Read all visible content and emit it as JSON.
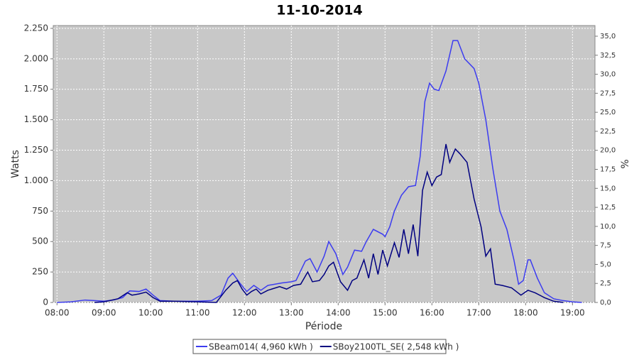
{
  "chart_data": {
    "type": "line",
    "title": "11-10-2014",
    "x_label": "Période",
    "y_label": "Watts",
    "y2_label": "%",
    "xlim": [
      7.92,
      19.48
    ],
    "ylim": [
      0,
      2273
    ],
    "y2lim": [
      0,
      36.4
    ],
    "grid": true,
    "legend": "bottom",
    "xticks": [
      {
        "value": 8,
        "label": "08:00"
      },
      {
        "value": 9,
        "label": "09:00"
      },
      {
        "value": 10,
        "label": "10:00"
      },
      {
        "value": 11,
        "label": "11:00"
      },
      {
        "value": 12,
        "label": "12:00"
      },
      {
        "value": 13,
        "label": "13:00"
      },
      {
        "value": 14,
        "label": "14:00"
      },
      {
        "value": 15,
        "label": "15:00"
      },
      {
        "value": 16,
        "label": "16:00"
      },
      {
        "value": 17,
        "label": "17:00"
      },
      {
        "value": 18,
        "label": "18:00"
      },
      {
        "value": 19,
        "label": "19:00"
      }
    ],
    "yticks": [
      0,
      250,
      500,
      750,
      {
        "value": 1000,
        "label": "1.000"
      },
      {
        "value": 1250,
        "label": "1.250"
      },
      {
        "value": 1500,
        "label": "1.500"
      },
      {
        "value": 1750,
        "label": "1.750"
      },
      {
        "value": 2000,
        "label": "2.000"
      },
      {
        "value": 2250,
        "label": "2.250"
      }
    ],
    "y2ticks": [
      {
        "value": 0,
        "label": "0,0"
      },
      {
        "value": 2.5,
        "label": "2,5"
      },
      {
        "value": 5,
        "label": "5,0"
      },
      {
        "value": 7.5,
        "label": "7,5"
      },
      {
        "value": 10,
        "label": "10,0"
      },
      {
        "value": 12.5,
        "label": "12,5"
      },
      {
        "value": 15,
        "label": "15,0"
      },
      {
        "value": 17.5,
        "label": "17,5"
      },
      {
        "value": 20,
        "label": "20,0"
      },
      {
        "value": 22.5,
        "label": "22,5"
      },
      {
        "value": 25,
        "label": "25,0"
      },
      {
        "value": 27.5,
        "label": "27,5"
      },
      {
        "value": 30,
        "label": "30,0"
      },
      {
        "value": 32.5,
        "label": "32,5"
      },
      {
        "value": 35,
        "label": "35,0"
      }
    ],
    "series": [
      {
        "name": "SBeam014( 4,960 kWh )",
        "color": "#3c3cf0",
        "x": [
          8.0,
          8.3,
          8.6,
          8.8,
          9.0,
          9.2,
          9.4,
          9.55,
          9.75,
          9.9,
          10.05,
          10.2,
          10.5,
          11.0,
          11.3,
          11.5,
          11.65,
          11.75,
          11.9,
          12.05,
          12.2,
          12.35,
          12.5,
          12.8,
          13.0,
          13.1,
          13.3,
          13.4,
          13.55,
          13.7,
          13.8,
          13.95,
          14.1,
          14.2,
          14.35,
          14.5,
          14.6,
          14.75,
          14.95,
          15.0,
          15.1,
          15.2,
          15.35,
          15.5,
          15.65,
          15.75,
          15.85,
          15.95,
          16.05,
          16.15,
          16.3,
          16.45,
          16.55,
          16.7,
          16.9,
          17.0,
          17.15,
          17.3,
          17.45,
          17.6,
          17.75,
          17.85,
          17.95,
          18.05,
          18.1,
          18.25,
          18.4,
          18.6,
          18.8,
          19.0,
          19.2
        ],
        "values": [
          0,
          5,
          20,
          15,
          10,
          20,
          40,
          95,
          90,
          110,
          60,
          15,
          10,
          10,
          15,
          60,
          200,
          240,
          160,
          90,
          140,
          100,
          140,
          160,
          170,
          180,
          340,
          360,
          250,
          380,
          500,
          400,
          230,
          290,
          430,
          420,
          500,
          600,
          560,
          540,
          620,
          750,
          880,
          950,
          960,
          1200,
          1650,
          1800,
          1750,
          1740,
          1900,
          2150,
          2150,
          2000,
          1920,
          1800,
          1500,
          1100,
          750,
          600,
          350,
          150,
          180,
          350,
          350,
          200,
          80,
          30,
          15,
          5,
          0
        ]
      },
      {
        "name": "SBoy2100TL_SE( 2,548 kWh )",
        "color": "#000080",
        "x": [
          8.8,
          9.0,
          9.3,
          9.5,
          9.6,
          9.75,
          9.9,
          10.05,
          10.2,
          10.5,
          11.0,
          11.4,
          11.6,
          11.75,
          11.85,
          11.95,
          12.05,
          12.15,
          12.25,
          12.35,
          12.5,
          12.75,
          12.9,
          13.05,
          13.2,
          13.35,
          13.45,
          13.6,
          13.7,
          13.8,
          13.9,
          14.05,
          14.2,
          14.3,
          14.4,
          14.55,
          14.65,
          14.75,
          14.85,
          14.95,
          15.05,
          15.2,
          15.3,
          15.4,
          15.5,
          15.6,
          15.7,
          15.8,
          15.9,
          16.0,
          16.1,
          16.2,
          16.3,
          16.38,
          16.5,
          16.6,
          16.75,
          16.9,
          17.05,
          17.15,
          17.25,
          17.35,
          17.5,
          17.7,
          17.8,
          17.9,
          18.05,
          18.2,
          18.4,
          18.6,
          18.8
        ],
        "values": [
          0,
          5,
          30,
          80,
          60,
          70,
          85,
          40,
          10,
          10,
          5,
          0,
          100,
          160,
          180,
          110,
          60,
          90,
          110,
          70,
          100,
          130,
          110,
          140,
          150,
          250,
          170,
          180,
          230,
          300,
          330,
          170,
          100,
          180,
          200,
          350,
          200,
          400,
          230,
          430,
          300,
          490,
          370,
          600,
          400,
          640,
          380,
          920,
          1070,
          960,
          1030,
          1050,
          1300,
          1150,
          1260,
          1220,
          1150,
          850,
          620,
          380,
          440,
          150,
          140,
          120,
          90,
          60,
          100,
          80,
          40,
          10,
          0
        ]
      }
    ]
  }
}
